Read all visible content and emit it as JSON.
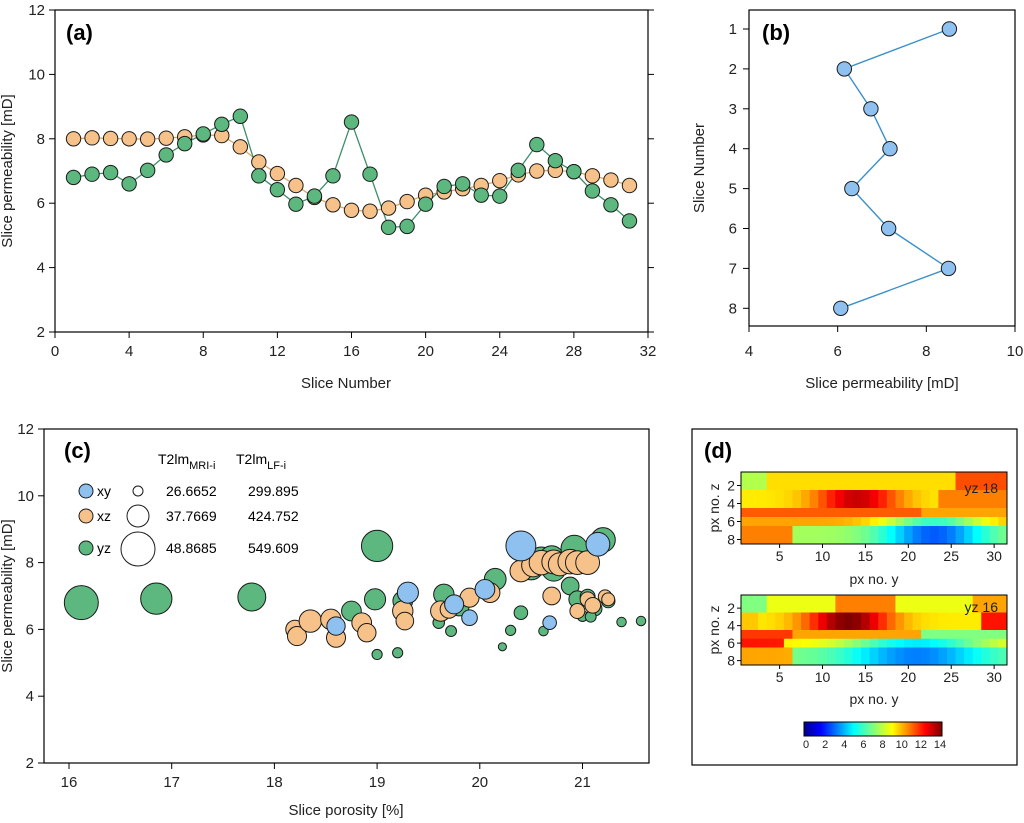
{
  "colors": {
    "xy": "#8ec1ef",
    "xz": "#f7c28a",
    "yz": "#5cb87e",
    "line_a": "#3d8f68",
    "line_b": "#3a90c8",
    "stroke": "#1a1a1a"
  },
  "chart_data": [
    {
      "id": "a",
      "type": "line",
      "panel_label": "(a)",
      "xlabel": "Slice Number",
      "ylabel": "Slice permeability [mD]",
      "xlim": [
        0,
        32
      ],
      "ylim": [
        2,
        12
      ],
      "xticks": [
        "0",
        "4",
        "8",
        "12",
        "16",
        "20",
        "24",
        "28",
        "32"
      ],
      "yticks": [
        "2",
        "4",
        "6",
        "8",
        "10",
        "12"
      ],
      "x": [
        1,
        2,
        3,
        4,
        5,
        6,
        7,
        8,
        9,
        10,
        11,
        12,
        13,
        14,
        15,
        16,
        17,
        18,
        19,
        20,
        21,
        22,
        23,
        24,
        25,
        26,
        27,
        28,
        29,
        30,
        31
      ],
      "series": [
        {
          "name": "xz",
          "values": [
            8.0,
            8.03,
            8.01,
            8.0,
            7.99,
            8.02,
            8.06,
            8.12,
            8.1,
            7.75,
            7.28,
            6.92,
            6.55,
            6.18,
            5.95,
            5.78,
            5.75,
            5.85,
            6.05,
            6.25,
            6.35,
            6.45,
            6.55,
            6.7,
            6.88,
            7.0,
            7.02,
            6.98,
            6.85,
            6.72,
            6.55
          ]
        },
        {
          "name": "yz",
          "values": [
            6.8,
            6.9,
            6.95,
            6.6,
            7.02,
            7.5,
            7.85,
            8.15,
            8.45,
            8.7,
            6.85,
            6.42,
            5.97,
            6.22,
            6.85,
            8.52,
            6.9,
            5.25,
            5.28,
            5.97,
            6.52,
            6.6,
            6.25,
            6.22,
            7.02,
            7.82,
            7.32,
            6.98,
            6.38,
            5.95,
            5.45
          ]
        }
      ]
    },
    {
      "id": "b",
      "type": "line",
      "panel_label": "(b)",
      "xlabel": "Slice permeability [mD]",
      "ylabel": "Slice Number",
      "xlim": [
        4,
        10
      ],
      "ylim": [
        0.5,
        8.5
      ],
      "xticks": [
        "4",
        "6",
        "8",
        "10"
      ],
      "yticks": [
        "1",
        "2",
        "3",
        "4",
        "5",
        "6",
        "7",
        "8"
      ],
      "series": [
        {
          "name": "xy",
          "slice": [
            1,
            2,
            3,
            4,
            5,
            6,
            7,
            8
          ],
          "values": [
            8.52,
            6.15,
            6.75,
            7.18,
            6.32,
            7.15,
            8.5,
            6.07
          ]
        }
      ]
    },
    {
      "id": "c",
      "type": "scatter",
      "panel_label": "(c)",
      "xlabel": "Slice porosity [%]",
      "ylabel": "Slice permeability [mD]",
      "xlim": [
        15.85,
        21.6
      ],
      "ylim": [
        2,
        12
      ],
      "xticks": [
        "16",
        "17",
        "18",
        "19",
        "20",
        "21"
      ],
      "yticks": [
        "2",
        "4",
        "6",
        "8",
        "10",
        "12"
      ],
      "legend": {
        "header_col1": "T2lm",
        "header_sub1": "MRI-i",
        "header_col2": "T2lm",
        "header_sub2": "LF-i",
        "rows": [
          {
            "label": "xy",
            "mri": "26.6652",
            "lf": "299.895"
          },
          {
            "label": "xz",
            "mri": "37.7669",
            "lf": "424.752"
          },
          {
            "label": "yz",
            "mri": "48.8685",
            "lf": "549.609"
          }
        ]
      },
      "series": [
        {
          "name": "xy",
          "points": [
            [
              18.6,
              6.1,
              54
            ],
            [
              19.3,
              7.1,
              62
            ],
            [
              19.75,
              6.75,
              56
            ],
            [
              20.05,
              7.2,
              58
            ],
            [
              20.4,
              8.5,
              88
            ],
            [
              20.68,
              6.2,
              40
            ],
            [
              21.15,
              8.55,
              70
            ],
            [
              19.9,
              6.35,
              46
            ]
          ]
        },
        {
          "name": "yz",
          "points": [
            [
              16.12,
              6.8,
              100
            ],
            [
              16.85,
              6.92,
              92
            ],
            [
              17.78,
              6.97,
              82
            ],
            [
              19.0,
              8.5,
              92
            ],
            [
              18.75,
              6.55,
              58
            ],
            [
              18.98,
              6.9,
              62
            ],
            [
              19.25,
              6.85,
              58
            ],
            [
              19.65,
              7.05,
              60
            ],
            [
              19.8,
              6.7,
              58
            ],
            [
              20.15,
              7.5,
              64
            ],
            [
              20.5,
              7.85,
              72
            ],
            [
              20.6,
              8.1,
              72
            ],
            [
              20.7,
              8.15,
              70
            ],
            [
              20.72,
              7.8,
              70
            ],
            [
              20.92,
              8.42,
              78
            ],
            [
              21.2,
              8.68,
              72
            ],
            [
              20.88,
              7.3,
              52
            ],
            [
              20.95,
              6.9,
              50
            ],
            [
              21.05,
              6.98,
              44
            ],
            [
              21.25,
              6.85,
              40
            ],
            [
              21.12,
              6.62,
              42
            ],
            [
              20.4,
              6.5,
              40
            ],
            [
              20.3,
              5.97,
              30
            ],
            [
              20.62,
              5.95,
              28
            ],
            [
              19.0,
              5.25,
              30
            ],
            [
              19.2,
              5.3,
              30
            ],
            [
              19.72,
              5.95,
              32
            ],
            [
              20.22,
              5.48,
              24
            ],
            [
              21.38,
              6.22,
              28
            ],
            [
              21.57,
              6.25,
              28
            ],
            [
              21.0,
              6.4,
              32
            ],
            [
              21.08,
              6.38,
              32
            ],
            [
              19.6,
              6.2,
              34
            ]
          ]
        },
        {
          "name": "xz",
          "points": [
            [
              18.2,
              6.0,
              54
            ],
            [
              18.22,
              5.8,
              56
            ],
            [
              18.35,
              6.25,
              66
            ],
            [
              18.55,
              6.3,
              60
            ],
            [
              18.6,
              5.75,
              56
            ],
            [
              18.85,
              6.2,
              58
            ],
            [
              18.9,
              5.9,
              54
            ],
            [
              19.25,
              6.55,
              60
            ],
            [
              19.27,
              6.25,
              52
            ],
            [
              19.62,
              6.55,
              60
            ],
            [
              19.7,
              6.6,
              52
            ],
            [
              19.9,
              6.95,
              56
            ],
            [
              20.1,
              7.1,
              58
            ],
            [
              20.4,
              7.75,
              64
            ],
            [
              20.52,
              7.92,
              68
            ],
            [
              20.6,
              8.0,
              72
            ],
            [
              20.72,
              8.02,
              70
            ],
            [
              20.78,
              7.95,
              68
            ],
            [
              20.88,
              8.03,
              72
            ],
            [
              20.95,
              8.0,
              70
            ],
            [
              21.05,
              8.0,
              70
            ],
            [
              20.7,
              7.0,
              52
            ],
            [
              20.95,
              6.55,
              44
            ],
            [
              21.05,
              6.9,
              44
            ],
            [
              21.1,
              6.72,
              46
            ],
            [
              21.22,
              6.98,
              40
            ],
            [
              21.25,
              6.9,
              38
            ]
          ]
        }
      ]
    }
  ],
  "panel_d": {
    "panel_label": "(d)",
    "heatmaps": [
      {
        "title": "yz 18",
        "ylabel": "px no. z",
        "xlabel": "px no. y",
        "yticks": [
          "2",
          "4",
          "6",
          "8"
        ],
        "xticks": [
          "5",
          "10",
          "15",
          "20",
          "25",
          "30"
        ]
      },
      {
        "title": "yz 16",
        "ylabel": "px no. z",
        "xlabel": "px no. y",
        "yticks": [
          "2",
          "4",
          "6",
          "8"
        ],
        "xticks": [
          "5",
          "10",
          "15",
          "20",
          "25",
          "30"
        ]
      }
    ],
    "colorbar_ticks": [
      "0",
      "2",
      "4",
      "6",
      "8",
      "10",
      "12",
      "14"
    ]
  }
}
